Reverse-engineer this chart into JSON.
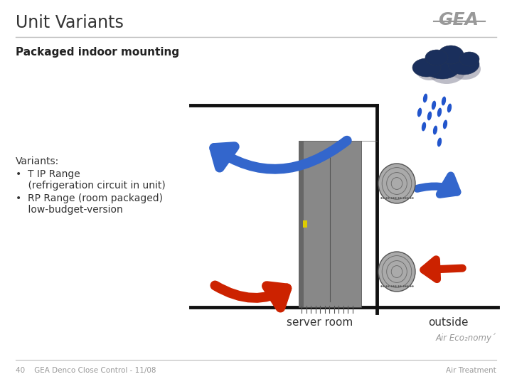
{
  "title": "Unit Variants",
  "subtitle": "Packaged indoor mounting",
  "variants_label": "Variants:",
  "bullet1_line1": "•  T IP Range",
  "bullet1_line2": "    (refrigeration circuit in unit)",
  "bullet2_line1": "•  RP Range (room packaged)",
  "bullet2_line2": "    low-budget-version",
  "label_server_room": "server room",
  "label_outside": "outside",
  "footer_left": "40    GEA Denco Close Control - 11/08",
  "footer_right": "Air Treatment",
  "air_economy": "Air Eco₂nomy´",
  "bg_color": "#ffffff",
  "title_color": "#333333",
  "subtitle_color": "#222222",
  "text_color": "#333333",
  "gray_color": "#999999",
  "blue_arrow_color": "#3366cc",
  "red_arrow_color": "#cc2200",
  "unit_color": "#888888",
  "unit_dark": "#666666",
  "wall_color": "#111111",
  "vent_color": "#aaaaaa",
  "vent_dark": "#777777",
  "cloud_color": "#1a2f5c",
  "cloud_shadow": "#555566",
  "rain_color": "#2255cc",
  "separator_color": "#bbbbbb",
  "gea_color": "#999999"
}
